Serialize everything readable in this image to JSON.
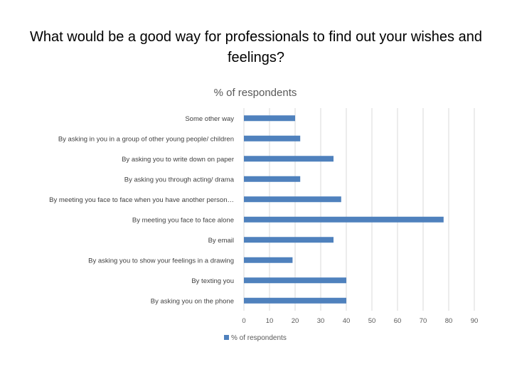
{
  "slide": {
    "title": "What would be a good way for professionals to find out your wishes and feelings?"
  },
  "chart_data": {
    "type": "bar",
    "orientation": "horizontal",
    "title": "% of respondents",
    "categories": [
      "Some other way",
      "By asking in you in a group of other young people/ children",
      "By asking you to write down on paper",
      "By asking you through acting/ drama",
      "By meeting you face to face when you have another person…",
      "By meeting you face to face alone",
      "By email",
      "By asking you to show your feelings in a drawing",
      "By texting you",
      "By asking you on the phone"
    ],
    "series": [
      {
        "name": "% of respondents",
        "color": "#4F81BD",
        "values": [
          20,
          22,
          35,
          22,
          38,
          78,
          35,
          19,
          40,
          40
        ]
      }
    ],
    "xlim": [
      0,
      90
    ],
    "xticks": [
      "0",
      "10",
      "20",
      "30",
      "40",
      "50",
      "60",
      "70",
      "80",
      "90"
    ],
    "grid": true,
    "legend": "bottom"
  }
}
